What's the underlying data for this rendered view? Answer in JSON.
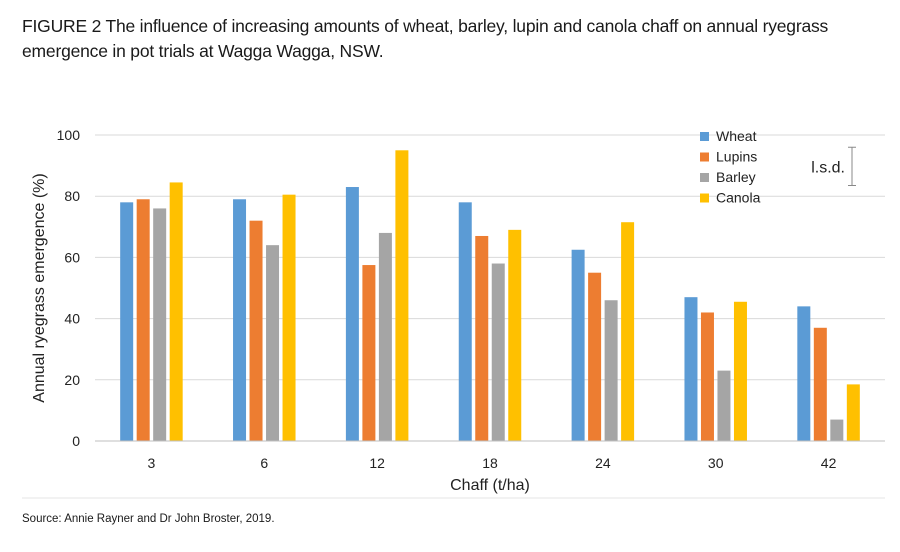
{
  "figure": {
    "title": "FIGURE 2  The influence of increasing amounts of wheat, barley, lupin and canola chaff on annual ryegrass emergence in pot trials at Wagga Wagga, NSW.",
    "source": "Source: Annie Rayner and Dr John Broster, 2019."
  },
  "chart_data": {
    "type": "bar",
    "xlabel": "Chaff (t/ha)",
    "ylabel": "Annual ryegrass emergence (%)",
    "categories": [
      "3",
      "6",
      "12",
      "18",
      "24",
      "30",
      "42"
    ],
    "ylim": [
      0,
      100
    ],
    "yticks": [
      0,
      20,
      40,
      60,
      80,
      100
    ],
    "grid": true,
    "legend_position": "top-right",
    "series": [
      {
        "name": "Wheat",
        "color": "#5b9bd5",
        "values": [
          78,
          79,
          83,
          78,
          62.5,
          47,
          44
        ]
      },
      {
        "name": "Lupins",
        "color": "#ed7d31",
        "values": [
          79,
          72,
          57.5,
          67,
          55,
          42,
          37
        ]
      },
      {
        "name": "Barley",
        "color": "#a5a5a5",
        "values": [
          76,
          64,
          68,
          58,
          46,
          23,
          7
        ]
      },
      {
        "name": "Canola",
        "color": "#ffc000",
        "values": [
          84.5,
          80.5,
          95,
          69,
          71.5,
          45.5,
          18.5
        ]
      }
    ],
    "annotation": {
      "label": "l.s.d.",
      "value": 12.5
    }
  }
}
